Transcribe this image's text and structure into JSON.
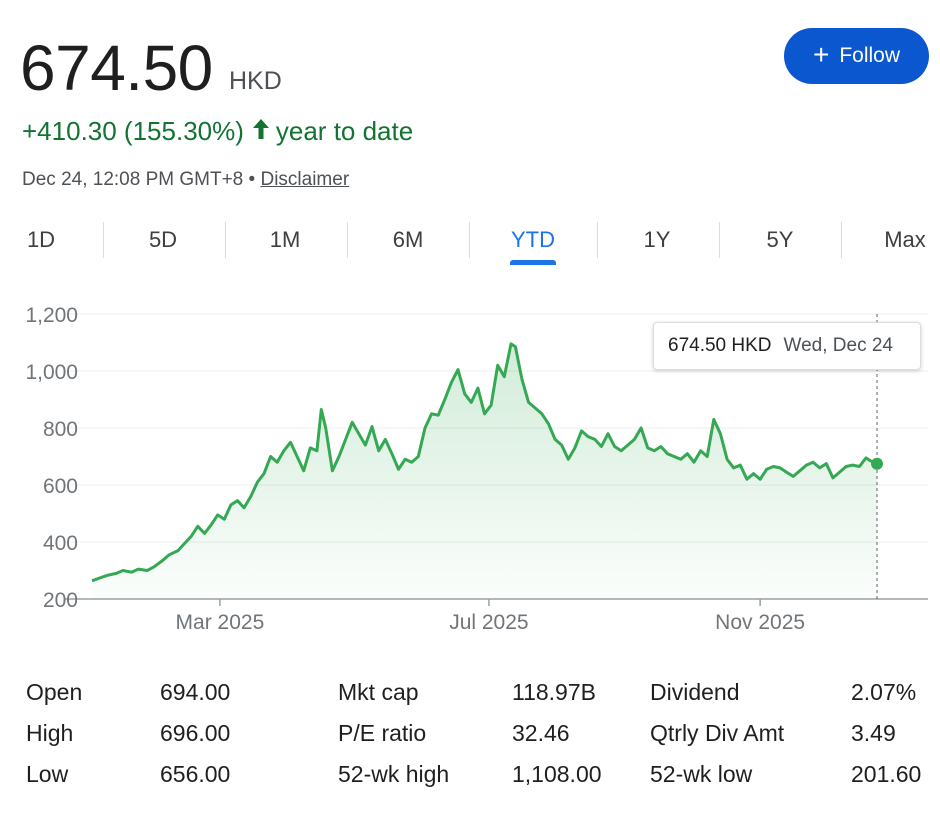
{
  "quote": {
    "price": "674.50",
    "currency": "HKD",
    "change": "+410.30 (155.30%)",
    "period": "year to date",
    "timestamp": "Dec 24, 12:08 PM GMT+8",
    "separator": "•",
    "disclaimer": "Disclaimer"
  },
  "follow": {
    "label": "Follow",
    "icon": "plus-icon"
  },
  "ranges": {
    "tabs": [
      "1D",
      "5D",
      "1M",
      "6M",
      "YTD",
      "1Y",
      "5Y",
      "Max"
    ],
    "selected": "YTD"
  },
  "tooltip": {
    "price": "674.50 HKD",
    "date": "Wed, Dec 24"
  },
  "colors": {
    "up": "#137333",
    "line": "#34a853",
    "accent": "#0b57d0",
    "tab_active": "#1a73e8"
  },
  "chart_data": {
    "type": "area",
    "ylim": [
      200,
      1200
    ],
    "yticks": [
      200,
      400,
      600,
      800,
      1000,
      1200
    ],
    "ytick_labels": [
      "200",
      "400",
      "600",
      "800",
      "1,000",
      "1,200"
    ],
    "xticks": [
      {
        "date": "2025-03-01",
        "label": "Mar 2025"
      },
      {
        "date": "2025-07-01",
        "label": "Jul 2025"
      },
      {
        "date": "2025-11-01",
        "label": "Nov 2025"
      }
    ],
    "xlim": [
      "2025-01-02",
      "2025-12-24"
    ],
    "grid": true,
    "series": [
      {
        "points": [
          [
            "2025-01-02",
            264
          ],
          [
            "2025-01-06",
            275
          ],
          [
            "2025-01-09",
            283
          ],
          [
            "2025-01-13",
            290
          ],
          [
            "2025-01-16",
            300
          ],
          [
            "2025-01-20",
            294
          ],
          [
            "2025-01-23",
            305
          ],
          [
            "2025-01-27",
            300
          ],
          [
            "2025-01-30",
            312
          ],
          [
            "2025-02-03",
            335
          ],
          [
            "2025-02-06",
            355
          ],
          [
            "2025-02-10",
            370
          ],
          [
            "2025-02-13",
            395
          ],
          [
            "2025-02-16",
            420
          ],
          [
            "2025-02-19",
            455
          ],
          [
            "2025-02-22",
            430
          ],
          [
            "2025-02-25",
            460
          ],
          [
            "2025-02-28",
            495
          ],
          [
            "2025-03-03",
            480
          ],
          [
            "2025-03-06",
            530
          ],
          [
            "2025-03-09",
            545
          ],
          [
            "2025-03-12",
            520
          ],
          [
            "2025-03-15",
            560
          ],
          [
            "2025-03-18",
            610
          ],
          [
            "2025-03-21",
            640
          ],
          [
            "2025-03-24",
            700
          ],
          [
            "2025-03-27",
            680
          ],
          [
            "2025-03-30",
            720
          ],
          [
            "2025-04-02",
            750
          ],
          [
            "2025-04-05",
            700
          ],
          [
            "2025-04-08",
            650
          ],
          [
            "2025-04-11",
            730
          ],
          [
            "2025-04-14",
            720
          ],
          [
            "2025-04-16",
            865
          ],
          [
            "2025-04-18",
            800
          ],
          [
            "2025-04-21",
            650
          ],
          [
            "2025-04-24",
            700
          ],
          [
            "2025-04-27",
            760
          ],
          [
            "2025-04-30",
            820
          ],
          [
            "2025-05-03",
            780
          ],
          [
            "2025-05-06",
            740
          ],
          [
            "2025-05-09",
            805
          ],
          [
            "2025-05-12",
            720
          ],
          [
            "2025-05-15",
            760
          ],
          [
            "2025-05-18",
            710
          ],
          [
            "2025-05-21",
            655
          ],
          [
            "2025-05-24",
            690
          ],
          [
            "2025-05-27",
            680
          ],
          [
            "2025-05-30",
            700
          ],
          [
            "2025-06-02",
            800
          ],
          [
            "2025-06-05",
            850
          ],
          [
            "2025-06-08",
            845
          ],
          [
            "2025-06-11",
            900
          ],
          [
            "2025-06-14",
            960
          ],
          [
            "2025-06-17",
            1005
          ],
          [
            "2025-06-20",
            920
          ],
          [
            "2025-06-23",
            890
          ],
          [
            "2025-06-26",
            940
          ],
          [
            "2025-06-29",
            850
          ],
          [
            "2025-07-02",
            880
          ],
          [
            "2025-07-05",
            1020
          ],
          [
            "2025-07-08",
            980
          ],
          [
            "2025-07-11",
            1095
          ],
          [
            "2025-07-13",
            1085
          ],
          [
            "2025-07-16",
            970
          ],
          [
            "2025-07-19",
            890
          ],
          [
            "2025-07-22",
            870
          ],
          [
            "2025-07-25",
            850
          ],
          [
            "2025-07-28",
            815
          ],
          [
            "2025-07-31",
            760
          ],
          [
            "2025-08-03",
            740
          ],
          [
            "2025-08-06",
            690
          ],
          [
            "2025-08-09",
            730
          ],
          [
            "2025-08-12",
            790
          ],
          [
            "2025-08-15",
            770
          ],
          [
            "2025-08-18",
            760
          ],
          [
            "2025-08-21",
            735
          ],
          [
            "2025-08-24",
            780
          ],
          [
            "2025-08-27",
            735
          ],
          [
            "2025-08-30",
            720
          ],
          [
            "2025-09-02",
            740
          ],
          [
            "2025-09-05",
            760
          ],
          [
            "2025-09-08",
            800
          ],
          [
            "2025-09-11",
            730
          ],
          [
            "2025-09-14",
            720
          ],
          [
            "2025-09-17",
            735
          ],
          [
            "2025-09-20",
            710
          ],
          [
            "2025-09-23",
            700
          ],
          [
            "2025-09-26",
            690
          ],
          [
            "2025-09-29",
            710
          ],
          [
            "2025-10-02",
            680
          ],
          [
            "2025-10-05",
            720
          ],
          [
            "2025-10-08",
            700
          ],
          [
            "2025-10-11",
            830
          ],
          [
            "2025-10-14",
            780
          ],
          [
            "2025-10-17",
            690
          ],
          [
            "2025-10-20",
            660
          ],
          [
            "2025-10-23",
            670
          ],
          [
            "2025-10-26",
            620
          ],
          [
            "2025-10-29",
            640
          ],
          [
            "2025-11-01",
            620
          ],
          [
            "2025-11-04",
            655
          ],
          [
            "2025-11-07",
            665
          ],
          [
            "2025-11-10",
            660
          ],
          [
            "2025-11-13",
            645
          ],
          [
            "2025-11-16",
            630
          ],
          [
            "2025-11-19",
            650
          ],
          [
            "2025-11-22",
            670
          ],
          [
            "2025-11-25",
            680
          ],
          [
            "2025-11-28",
            660
          ],
          [
            "2025-12-01",
            675
          ],
          [
            "2025-12-04",
            625
          ],
          [
            "2025-12-07",
            645
          ],
          [
            "2025-12-10",
            665
          ],
          [
            "2025-12-13",
            670
          ],
          [
            "2025-12-16",
            665
          ],
          [
            "2025-12-19",
            695
          ],
          [
            "2025-12-21",
            685
          ],
          [
            "2025-12-24",
            674.5
          ]
        ]
      }
    ]
  },
  "stats": [
    {
      "label": "Open",
      "value": "694.00"
    },
    {
      "label": "High",
      "value": "696.00"
    },
    {
      "label": "Low",
      "value": "656.00"
    },
    {
      "label": "Mkt cap",
      "value": "118.97B"
    },
    {
      "label": "P/E ratio",
      "value": "32.46"
    },
    {
      "label": "52-wk high",
      "value": "1,108.00"
    },
    {
      "label": "Dividend",
      "value": "2.07%"
    },
    {
      "label": "Qtrly Div Amt",
      "value": "3.49"
    },
    {
      "label": "52-wk low",
      "value": "201.60"
    }
  ]
}
